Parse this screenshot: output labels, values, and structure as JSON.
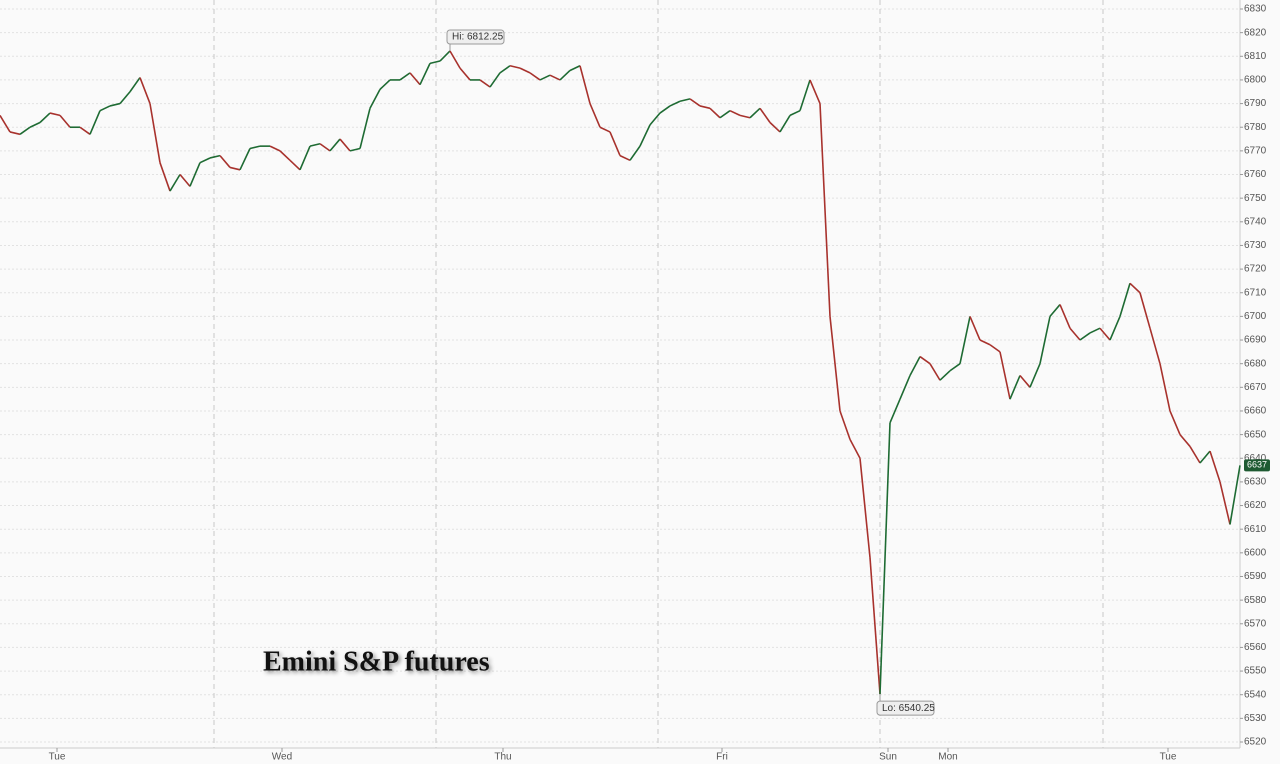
{
  "chart_data": {
    "type": "line",
    "title": "Emini S&P futures",
    "xlim": [
      0,
      124
    ],
    "xticks": [
      {
        "value": 5.7,
        "label": "Tue"
      },
      {
        "value": 28.2,
        "label": "Wed"
      },
      {
        "value": 50.3,
        "label": "Thu"
      },
      {
        "value": 72.2,
        "label": "Fri"
      },
      {
        "value": 88.8,
        "label": "Sun"
      },
      {
        "value": 94.8,
        "label": "Mon"
      },
      {
        "value": 116.8,
        "label": "Tue"
      }
    ],
    "xgrid": [
      21.4,
      43.6,
      65.8,
      88,
      110.3
    ],
    "ylim": [
      6520,
      6830
    ],
    "yticks": [
      6520,
      6530,
      6540,
      6550,
      6560,
      6570,
      6580,
      6590,
      6600,
      6610,
      6620,
      6630,
      6640,
      6650,
      6660,
      6670,
      6680,
      6690,
      6700,
      6710,
      6720,
      6730,
      6740,
      6750,
      6760,
      6770,
      6780,
      6790,
      6800,
      6810,
      6820,
      6830
    ],
    "grid": true,
    "up_color": "#1e6b33",
    "down_color": "#a8322d",
    "values": [
      6785,
      6778,
      6777,
      6780,
      6782,
      6786,
      6785,
      6780,
      6780,
      6777,
      6787,
      6789,
      6790,
      6795,
      6801,
      6790,
      6765,
      6753,
      6760,
      6755,
      6765,
      6767,
      6768,
      6763,
      6762,
      6771,
      6772,
      6772,
      6770,
      6766,
      6762,
      6772,
      6773,
      6770,
      6775,
      6770,
      6771,
      6788,
      6796,
      6800,
      6800,
      6803,
      6798,
      6807,
      6808,
      6812.25,
      6805,
      6800,
      6800,
      6797,
      6803,
      6806,
      6805,
      6803,
      6800,
      6802,
      6800,
      6804,
      6806,
      6790,
      6780,
      6778,
      6768,
      6766,
      6772,
      6781,
      6786,
      6789,
      6791,
      6792,
      6789,
      6788,
      6784,
      6787,
      6785,
      6784,
      6788,
      6782,
      6778,
      6785,
      6787,
      6800,
      6790,
      6700,
      6660,
      6648,
      6640,
      6598,
      6540.25,
      6655,
      6665,
      6675,
      6683,
      6680,
      6673,
      6677,
      6680,
      6700,
      6690,
      6688,
      6685,
      6665,
      6675,
      6670,
      6680,
      6700,
      6705,
      6695,
      6690,
      6693,
      6695,
      6690,
      6700,
      6714,
      6710,
      6695,
      6680,
      6660,
      6650,
      6645,
      6638,
      6643,
      6630,
      6612,
      6637
    ],
    "annotations": [
      {
        "label": "Hi: 6812.25",
        "x": 45,
        "value": 6812.25
      },
      {
        "label": "Lo: 6540.25",
        "x": 88,
        "value": 6540.25
      }
    ]
  }
}
